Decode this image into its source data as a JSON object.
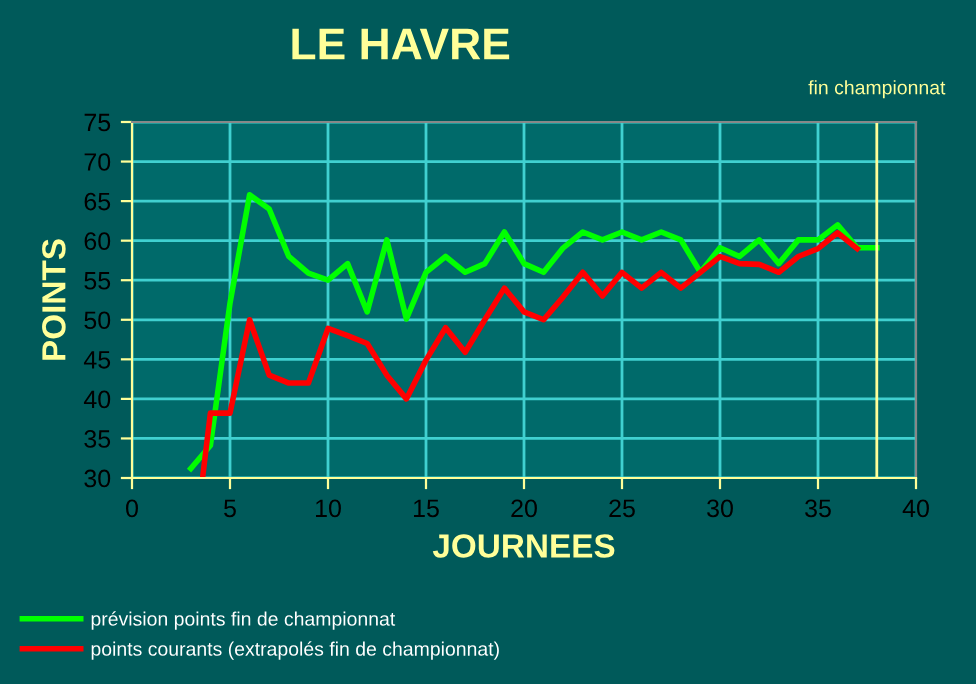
{
  "chart_data": {
    "type": "line",
    "title": "LE HAVRE",
    "xlabel": "JOURNEES",
    "ylabel": "POINTS",
    "xlim": [
      0,
      40
    ],
    "xticks": [
      0,
      5,
      10,
      15,
      20,
      25,
      30,
      35,
      40
    ],
    "ylim": [
      30,
      75
    ],
    "yticks": [
      30,
      35,
      40,
      45,
      50,
      55,
      60,
      65,
      70,
      75
    ],
    "grid": true,
    "legend": "bottom left",
    "marker": "none",
    "line_style": "solid",
    "ref_lines": [
      {
        "axis": "x",
        "value": 38,
        "label": "fin championnat",
        "color": "#ffff99"
      }
    ],
    "series": [
      {
        "name": "prévision points fin de championnat",
        "color": "#00ff00",
        "x": [
          3,
          4,
          5,
          6,
          7,
          8,
          9,
          10,
          11,
          12,
          13,
          14,
          15,
          16,
          17,
          18,
          19,
          20,
          21,
          22,
          23,
          24,
          25,
          26,
          27,
          28,
          29,
          30,
          31,
          32,
          33,
          34,
          35,
          36,
          37,
          38
        ],
        "values": [
          31.2,
          34.1,
          52.1,
          65.8,
          64,
          58,
          55.9,
          55,
          57.1,
          51,
          60.1,
          50.1,
          56,
          58,
          56,
          57.1,
          61.1,
          57.1,
          56,
          59.1,
          61.1,
          60.1,
          61.1,
          60.1,
          61.1,
          60.1,
          56,
          59.1,
          58,
          60.1,
          57.1,
          60.1,
          60.1,
          62,
          59.1,
          59.1
        ]
      },
      {
        "name": "points courants (extrapolés fin de championnat)",
        "color": "#ff0000",
        "x": [
          3.6,
          4,
          5,
          6,
          7,
          8,
          9,
          10,
          11,
          12,
          13,
          14,
          15,
          16,
          17,
          18,
          19,
          20,
          21,
          22,
          23,
          24,
          25,
          26,
          27,
          28,
          29,
          30,
          31,
          32,
          33,
          34,
          35,
          36,
          37
        ],
        "values": [
          30,
          38.2,
          38.2,
          50,
          43,
          42,
          42,
          48.9,
          48,
          47,
          43,
          40,
          44.9,
          49,
          45.9,
          50,
          54,
          51,
          50,
          52.9,
          56,
          53,
          56,
          54,
          56,
          54,
          56,
          58,
          57.1,
          57,
          56,
          58,
          59,
          61,
          59
        ]
      }
    ]
  }
}
